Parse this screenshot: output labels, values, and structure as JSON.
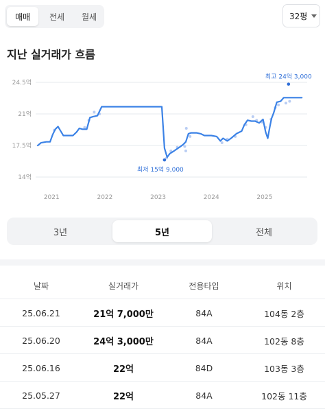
{
  "deal_tabs": [
    {
      "label": "매매",
      "active": true
    },
    {
      "label": "전세",
      "active": false
    },
    {
      "label": "월세",
      "active": false
    }
  ],
  "size_select": {
    "value": "32평"
  },
  "section_title": "지난 실거래가 흐름",
  "colors": {
    "line": "#3b82e6",
    "dot": "#b9cdf3",
    "label": "#2f6fd8",
    "grid": "#e6e8ec",
    "axis_text": "#999999"
  },
  "chart_data": {
    "type": "line",
    "title": "",
    "xlabel": "",
    "ylabel": "",
    "y_unit": "억",
    "ylim": [
      14,
      24.5
    ],
    "yticks": [
      {
        "value": 24.5,
        "label": "24.5억"
      },
      {
        "value": 21,
        "label": "21억"
      },
      {
        "value": 17.5,
        "label": "17.5억"
      },
      {
        "value": 14,
        "label": "14억"
      }
    ],
    "xlim": [
      2020.7,
      2025.8
    ],
    "xticks": [
      {
        "value": 2021,
        "label": "2021"
      },
      {
        "value": 2022,
        "label": "2022"
      },
      {
        "value": 2023,
        "label": "2023"
      },
      {
        "value": 2024,
        "label": "2024"
      },
      {
        "value": 2025,
        "label": "2025"
      }
    ],
    "grid": true,
    "series": [
      {
        "points": [
          [
            2020.74,
            17.5
          ],
          [
            2020.8,
            17.8
          ],
          [
            2020.9,
            17.9
          ],
          [
            2020.97,
            17.9
          ],
          [
            2021.02,
            18.7
          ],
          [
            2021.07,
            19.3
          ],
          [
            2021.12,
            19.6
          ],
          [
            2021.17,
            19.1
          ],
          [
            2021.22,
            18.6
          ],
          [
            2021.3,
            18.6
          ],
          [
            2021.4,
            18.6
          ],
          [
            2021.47,
            19.0
          ],
          [
            2021.52,
            19.4
          ],
          [
            2021.58,
            19.3
          ],
          [
            2021.66,
            19.3
          ],
          [
            2021.72,
            20.6
          ],
          [
            2021.78,
            20.7
          ],
          [
            2021.86,
            20.8
          ],
          [
            2021.94,
            21.8
          ],
          [
            2021.97,
            21.8
          ],
          [
            2022.3,
            21.8
          ],
          [
            2022.7,
            21.8
          ],
          [
            2023.07,
            21.8
          ],
          [
            2023.12,
            17.2
          ],
          [
            2023.17,
            16.2
          ],
          [
            2023.22,
            16.6
          ],
          [
            2023.3,
            16.9
          ],
          [
            2023.4,
            17.3
          ],
          [
            2023.47,
            17.6
          ],
          [
            2023.52,
            17.9
          ],
          [
            2023.57,
            18.8
          ],
          [
            2023.62,
            18.9
          ],
          [
            2023.72,
            18.9
          ],
          [
            2023.8,
            18.8
          ],
          [
            2023.87,
            18.6
          ],
          [
            2024.0,
            18.6
          ],
          [
            2024.1,
            18.5
          ],
          [
            2024.17,
            18.0
          ],
          [
            2024.22,
            18.3
          ],
          [
            2024.3,
            18.0
          ],
          [
            2024.37,
            18.3
          ],
          [
            2024.47,
            18.8
          ],
          [
            2024.57,
            19.1
          ],
          [
            2024.62,
            19.8
          ],
          [
            2024.68,
            20.3
          ],
          [
            2024.75,
            20.2
          ],
          [
            2024.82,
            20.2
          ],
          [
            2024.9,
            20.0
          ],
          [
            2024.97,
            20.4
          ],
          [
            2025.02,
            19.0
          ],
          [
            2025.06,
            18.3
          ],
          [
            2025.1,
            19.6
          ],
          [
            2025.13,
            20.5
          ],
          [
            2025.17,
            21.1
          ],
          [
            2025.23,
            22.3
          ],
          [
            2025.3,
            22.4
          ],
          [
            2025.36,
            22.8
          ],
          [
            2025.47,
            22.8
          ],
          [
            2025.55,
            22.8
          ],
          [
            2025.7,
            22.8
          ]
        ]
      }
    ],
    "scatter": [
      [
        2021.05,
        19.2
      ],
      [
        2021.62,
        19.5
      ],
      [
        2021.7,
        20.3
      ],
      [
        2021.8,
        21.2
      ],
      [
        2021.9,
        21.0
      ],
      [
        2023.16,
        16.1
      ],
      [
        2023.24,
        16.9
      ],
      [
        2023.36,
        17.3
      ],
      [
        2023.5,
        17.4
      ],
      [
        2023.52,
        16.9
      ],
      [
        2023.53,
        19.4
      ],
      [
        2023.6,
        18.5
      ],
      [
        2024.2,
        17.8
      ],
      [
        2024.3,
        18.2
      ],
      [
        2024.45,
        18.5
      ],
      [
        2024.65,
        19.8
      ],
      [
        2024.78,
        20.7
      ],
      [
        2024.85,
        20.3
      ],
      [
        2024.95,
        20.1
      ],
      [
        2025.02,
        19.5
      ],
      [
        2025.12,
        20.4
      ],
      [
        2025.2,
        21.7
      ],
      [
        2025.26,
        22.0
      ],
      [
        2025.4,
        22.2
      ],
      [
        2025.47,
        22.4
      ]
    ],
    "annotations": [
      {
        "label": "최고 24억 3,000",
        "x": 2025.45,
        "y": 24.3,
        "kind": "max"
      },
      {
        "label": "최저 15억 9,000",
        "x": 2023.12,
        "y": 15.9,
        "kind": "min"
      }
    ]
  },
  "period_buttons": [
    {
      "label": "3년",
      "active": false
    },
    {
      "label": "5년",
      "active": true
    },
    {
      "label": "전체",
      "active": false
    }
  ],
  "table": {
    "headers": [
      "날짜",
      "실거래가",
      "전용타입",
      "위치"
    ],
    "rows": [
      {
        "date": "25.06.21",
        "price": "21억 7,000만",
        "type": "84A",
        "location": "104동 2층"
      },
      {
        "date": "25.06.20",
        "price": "24억 3,000만",
        "type": "84A",
        "location": "102동 8층"
      },
      {
        "date": "25.06.16",
        "price": "22억",
        "type": "84D",
        "location": "103동 3층"
      },
      {
        "date": "25.05.27",
        "price": "22억",
        "type": "84A",
        "location": "102동 11층"
      }
    ]
  }
}
